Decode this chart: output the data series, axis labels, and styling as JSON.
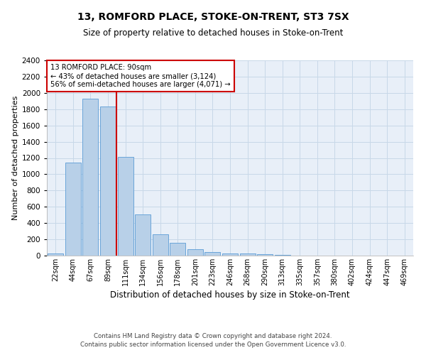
{
  "title1": "13, ROMFORD PLACE, STOKE-ON-TRENT, ST3 7SX",
  "title2": "Size of property relative to detached houses in Stoke-on-Trent",
  "xlabel": "Distribution of detached houses by size in Stoke-on-Trent",
  "ylabel": "Number of detached properties",
  "categories": [
    "22sqm",
    "44sqm",
    "67sqm",
    "89sqm",
    "111sqm",
    "134sqm",
    "156sqm",
    "178sqm",
    "201sqm",
    "223sqm",
    "246sqm",
    "268sqm",
    "290sqm",
    "313sqm",
    "335sqm",
    "357sqm",
    "380sqm",
    "402sqm",
    "424sqm",
    "447sqm",
    "469sqm"
  ],
  "values": [
    25,
    1140,
    1930,
    1830,
    1215,
    505,
    265,
    155,
    80,
    40,
    30,
    25,
    20,
    5,
    2,
    2,
    2,
    2,
    2,
    2,
    2
  ],
  "bar_color": "#b8d0e8",
  "bar_edge_color": "#5b9bd5",
  "vline_color": "#cc0000",
  "vline_x_index": 3.5,
  "annotation_title": "13 ROMFORD PLACE: 90sqm",
  "annotation_line1": "← 43% of detached houses are smaller (3,124)",
  "annotation_line2": "56% of semi-detached houses are larger (4,071) →",
  "annotation_box_color": "#ffffff",
  "annotation_box_edge": "#cc0000",
  "ylim": [
    0,
    2400
  ],
  "yticks": [
    0,
    200,
    400,
    600,
    800,
    1000,
    1200,
    1400,
    1600,
    1800,
    2000,
    2200,
    2400
  ],
  "grid_color": "#c8d8e8",
  "background_color": "#e8eff8",
  "footer1": "Contains HM Land Registry data © Crown copyright and database right 2024.",
  "footer2": "Contains public sector information licensed under the Open Government Licence v3.0."
}
